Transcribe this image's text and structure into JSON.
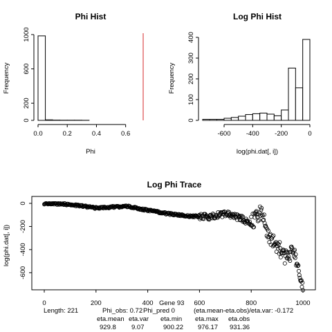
{
  "chart_data": [
    {
      "type": "bar",
      "title": "Phi Hist",
      "xlabel": "Phi",
      "ylabel": "Frequency",
      "bin_edges": [
        0,
        0.05,
        0.1,
        0.15,
        0.2,
        0.25,
        0.3,
        0.35,
        0.4,
        0.45,
        0.5,
        0.55,
        0.6,
        0.65,
        0.7
      ],
      "values": [
        985,
        6,
        3,
        2,
        2,
        2,
        1,
        0,
        0,
        0,
        0,
        0,
        0,
        0
      ],
      "xlim": [
        0,
        0.72
      ],
      "ylim": [
        0,
        1000
      ],
      "xticks": [
        "0.0",
        "0.2",
        "0.4",
        "0.6"
      ],
      "yticks": [
        "0",
        "200",
        "600",
        "1000"
      ],
      "vline": {
        "x": 0.72,
        "label": "Phi_obs",
        "color": "#d62728"
      }
    },
    {
      "type": "bar",
      "title": "Log Phi Hist",
      "xlabel": "log(phi.dat[, i])",
      "ylabel": "Frequency",
      "bin_edges": [
        -750,
        -700,
        -650,
        -600,
        -550,
        -500,
        -450,
        -400,
        -350,
        -300,
        -250,
        -200,
        -150,
        -100,
        -50,
        0
      ],
      "values": [
        5,
        5,
        5,
        10,
        14,
        20,
        28,
        32,
        35,
        30,
        22,
        50,
        252,
        157,
        390
      ],
      "xlim": [
        -750,
        0
      ],
      "ylim": [
        0,
        400
      ],
      "xticks": [
        "-600",
        "-400",
        "-200",
        "0"
      ],
      "yticks": [
        "0",
        "100",
        "200",
        "300",
        "400"
      ]
    },
    {
      "type": "scatter",
      "title": "Log Phi Trace",
      "xlabel": "",
      "ylabel": "log(phi.dat[, i])",
      "xlim": [
        0,
        1000
      ],
      "ylim": [
        -700,
        0
      ],
      "xticks": [
        "0",
        "200",
        "400",
        "600",
        "800",
        "1000"
      ],
      "yticks": [
        "0",
        "-200",
        "-400",
        "-600"
      ],
      "marker": "open-circle",
      "trend_points": [
        [
          0,
          0
        ],
        [
          100,
          -10
        ],
        [
          200,
          -40
        ],
        [
          320,
          -25
        ],
        [
          400,
          -60
        ],
        [
          480,
          -90
        ],
        [
          560,
          -110
        ],
        [
          640,
          -115
        ],
        [
          700,
          -90
        ],
        [
          760,
          -130
        ],
        [
          800,
          -170
        ],
        [
          840,
          -70
        ],
        [
          860,
          -260
        ],
        [
          900,
          -370
        ],
        [
          940,
          -480
        ],
        [
          960,
          -420
        ],
        [
          980,
          -540
        ],
        [
          990,
          -650
        ],
        [
          1000,
          -730
        ]
      ]
    }
  ],
  "footer": {
    "line1": [
      "Length: 221",
      "Phi_obs: 0.72",
      "Phi_pred 0",
      "(eta.mean-eta.obs)/eta.var: -0.172"
    ],
    "line2": [
      "eta.mean",
      "eta.var",
      "eta.min",
      "eta.max",
      "eta.obs"
    ],
    "line3": [
      "929.8",
      "9.07",
      "900.22",
      "976.17",
      "931.36"
    ],
    "gene": "Gene 93"
  }
}
